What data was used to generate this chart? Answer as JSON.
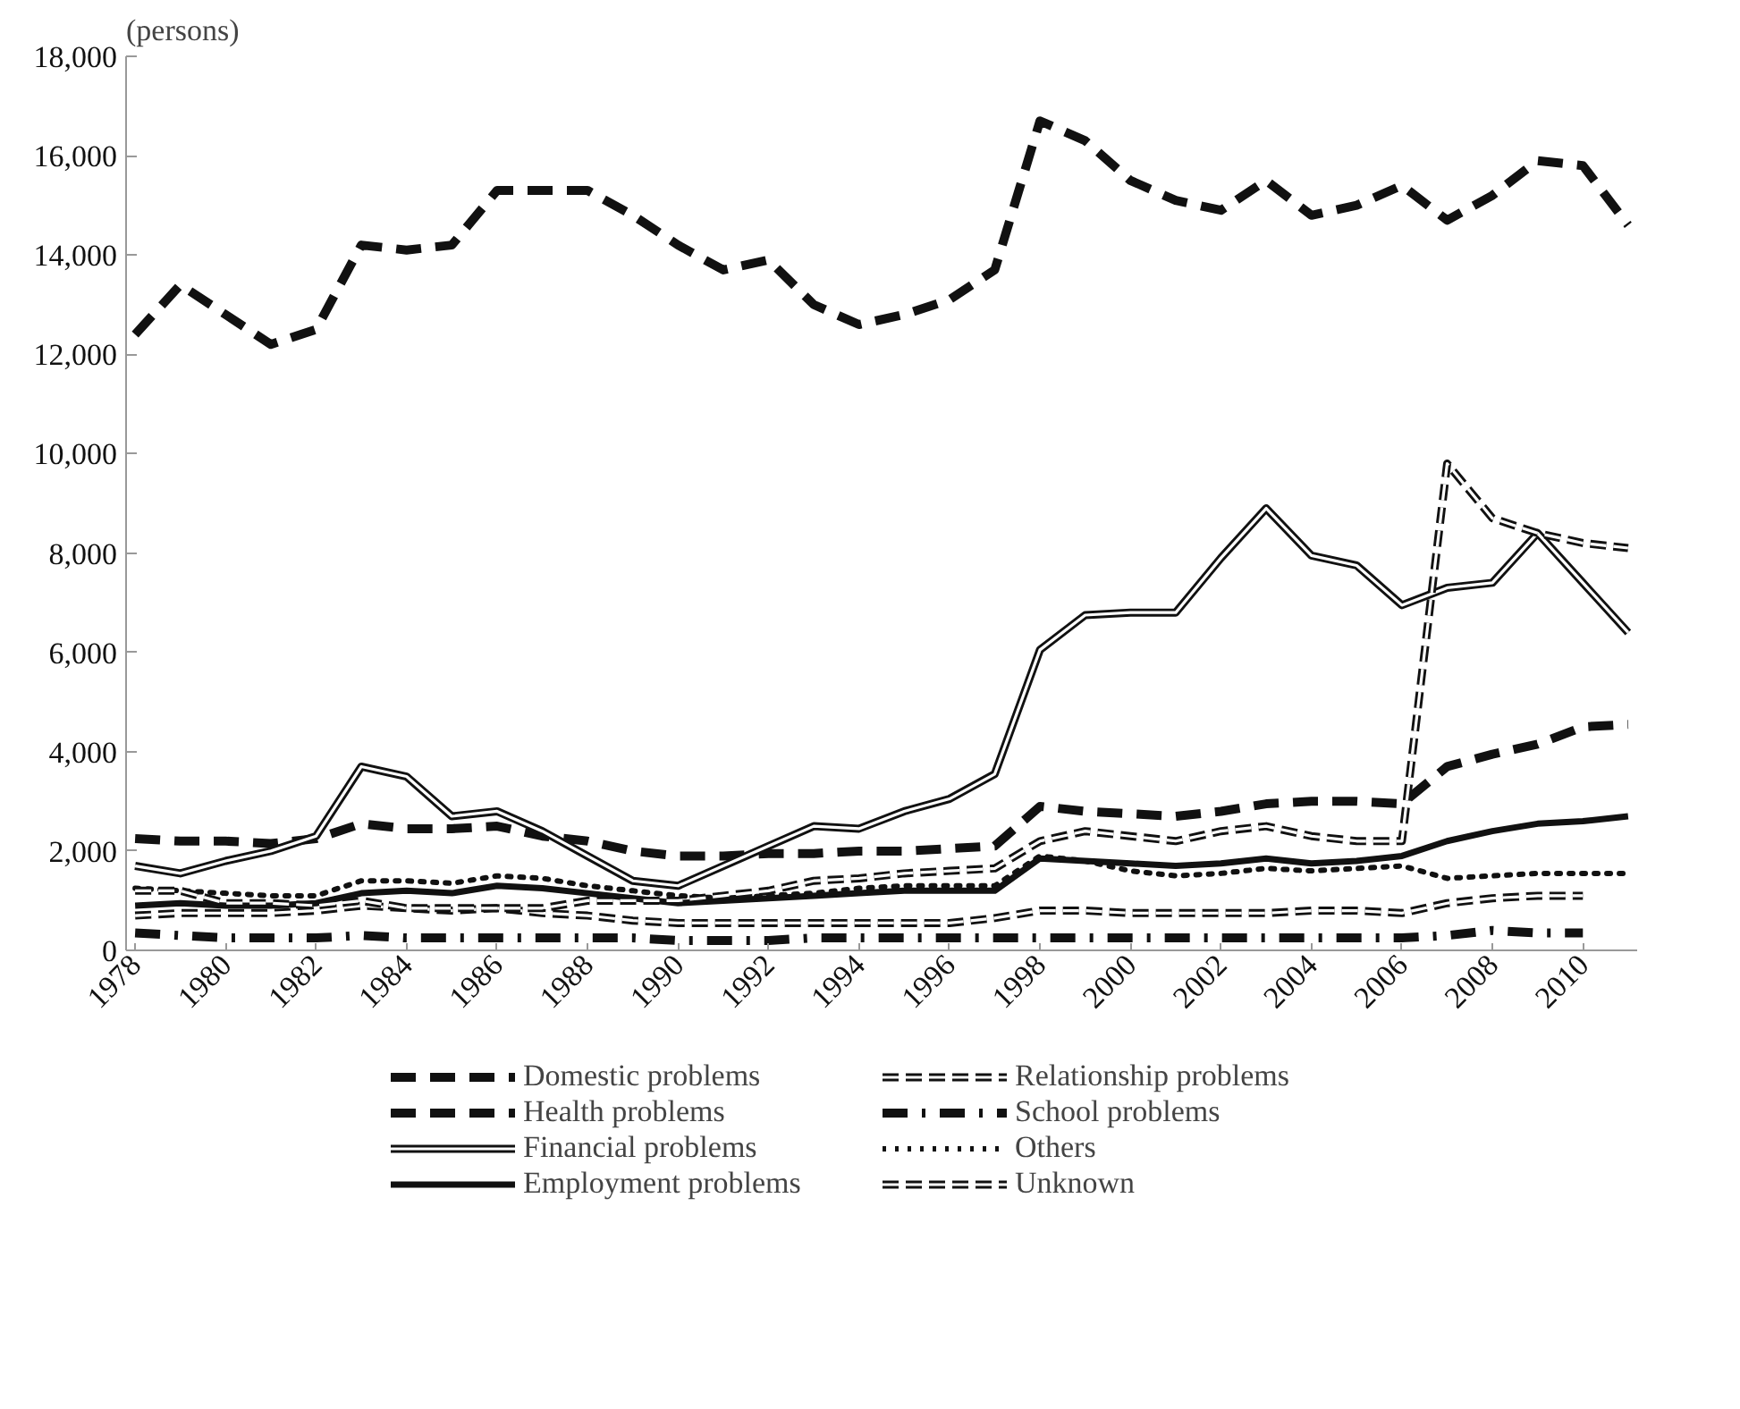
{
  "chart_data": {
    "type": "line",
    "ylabel": "(persons)",
    "x": [
      1978,
      1979,
      1980,
      1981,
      1982,
      1983,
      1984,
      1985,
      1986,
      1987,
      1988,
      1989,
      1990,
      1991,
      1992,
      1993,
      1994,
      1995,
      1996,
      1997,
      1998,
      1999,
      2000,
      2001,
      2002,
      2003,
      2004,
      2005,
      2006,
      2007,
      2008,
      2009,
      2010,
      2011
    ],
    "xlim": [
      1977.8,
      2011.2
    ],
    "xticks": [
      1978,
      1980,
      1982,
      1984,
      1986,
      1988,
      1990,
      1992,
      1994,
      1996,
      1998,
      2000,
      2002,
      2004,
      2006,
      2008,
      2010
    ],
    "ylim": [
      0,
      18000
    ],
    "yticks": [
      {
        "value": 0,
        "label": "0"
      },
      {
        "value": 2000,
        "label": "2,000"
      },
      {
        "value": 4000,
        "label": "4,000"
      },
      {
        "value": 6000,
        "label": "6,000"
      },
      {
        "value": 8000,
        "label": "8,000"
      },
      {
        "value": 10000,
        "label": "10,000"
      },
      {
        "value": 12000,
        "label": "12,000"
      },
      {
        "value": 14000,
        "label": "14,000"
      },
      {
        "value": 16000,
        "label": "16,000"
      },
      {
        "value": 18000,
        "label": "18,000"
      }
    ],
    "grid": false,
    "legend": "bottom",
    "marker": "none",
    "series": [
      {
        "name": "Domestic problems",
        "color": "#111111",
        "line_style": "dashed",
        "values": [
          2250,
          2200,
          2200,
          2150,
          2250,
          2550,
          2450,
          2450,
          2500,
          2300,
          2200,
          2000,
          1900,
          1900,
          1950,
          1950,
          2000,
          2000,
          2050,
          2100,
          2900,
          2800,
          2750,
          2700,
          2800,
          2950,
          3000,
          3000,
          2950,
          3700,
          3950,
          4150,
          4500,
          4550
        ]
      },
      {
        "name": "Health problems",
        "color": "#111111",
        "line_style": "dashed",
        "values": [
          12400,
          13400,
          12800,
          12200,
          12500,
          14200,
          14100,
          14200,
          15300,
          15300,
          15300,
          14800,
          14200,
          13700,
          13900,
          13000,
          12600,
          12800,
          13100,
          13700,
          16700,
          16300,
          15500,
          15100,
          14900,
          15500,
          14800,
          15000,
          15400,
          14700,
          15200,
          15900,
          15800,
          14600
        ]
      },
      {
        "name": "Financial problems",
        "color": "#111111",
        "line_style": "solid",
        "values": [
          1700,
          1550,
          1800,
          2000,
          2300,
          3700,
          3500,
          2700,
          2800,
          2400,
          1900,
          1400,
          1300,
          1700,
          2100,
          2500,
          2450,
          2800,
          3050,
          3550,
          6050,
          6750,
          6800,
          6800,
          7900,
          8900,
          7950,
          7750,
          6950,
          7300,
          7400,
          8400,
          7400,
          6400
        ]
      },
      {
        "name": "Employment problems",
        "color": "#111111",
        "line_style": "solid",
        "values": [
          900,
          950,
          900,
          900,
          950,
          1150,
          1200,
          1150,
          1300,
          1250,
          1150,
          1050,
          950,
          1000,
          1050,
          1100,
          1150,
          1200,
          1200,
          1200,
          1850,
          1800,
          1750,
          1700,
          1750,
          1850,
          1750,
          1800,
          1900,
          2200,
          2400,
          2550,
          2600,
          2700
        ]
      },
      {
        "name": "Relationship problems",
        "color": "#111111",
        "line_style": "dashed",
        "values": [
          700,
          750,
          750,
          750,
          800,
          900,
          850,
          800,
          850,
          750,
          700,
          600,
          550,
          550,
          550,
          550,
          550,
          550,
          550,
          650,
          800,
          800,
          750,
          750,
          750,
          750,
          800,
          800,
          750,
          950,
          1050,
          1100,
          1100,
          null
        ]
      },
      {
        "name": "School problems",
        "color": "#111111",
        "line_style": "dashdot",
        "values": [
          350,
          300,
          250,
          250,
          250,
          300,
          250,
          250,
          250,
          250,
          250,
          250,
          200,
          200,
          200,
          250,
          250,
          250,
          250,
          250,
          250,
          250,
          250,
          250,
          250,
          250,
          250,
          250,
          250,
          300,
          400,
          350,
          350,
          null
        ]
      },
      {
        "name": "Others",
        "color": "#111111",
        "line_style": "dotted",
        "values": [
          1250,
          1200,
          1150,
          1100,
          1100,
          1400,
          1400,
          1350,
          1500,
          1450,
          1300,
          1200,
          1100,
          1050,
          1100,
          1150,
          1250,
          1300,
          1300,
          1300,
          1900,
          1800,
          1600,
          1500,
          1550,
          1650,
          1600,
          1650,
          1700,
          1450,
          1500,
          1550,
          1550,
          1550
        ]
      },
      {
        "name": "Unknown",
        "color": "#111111",
        "line_style": "dashed",
        "values": [
          1200,
          1200,
          950,
          950,
          900,
          1000,
          850,
          850,
          850,
          850,
          1000,
          1000,
          1000,
          1100,
          1200,
          1400,
          1450,
          1550,
          1600,
          1650,
          2200,
          2400,
          2300,
          2200,
          2400,
          2500,
          2300,
          2200,
          2200,
          9800,
          8700,
          8400,
          8200,
          8100
        ]
      }
    ]
  }
}
